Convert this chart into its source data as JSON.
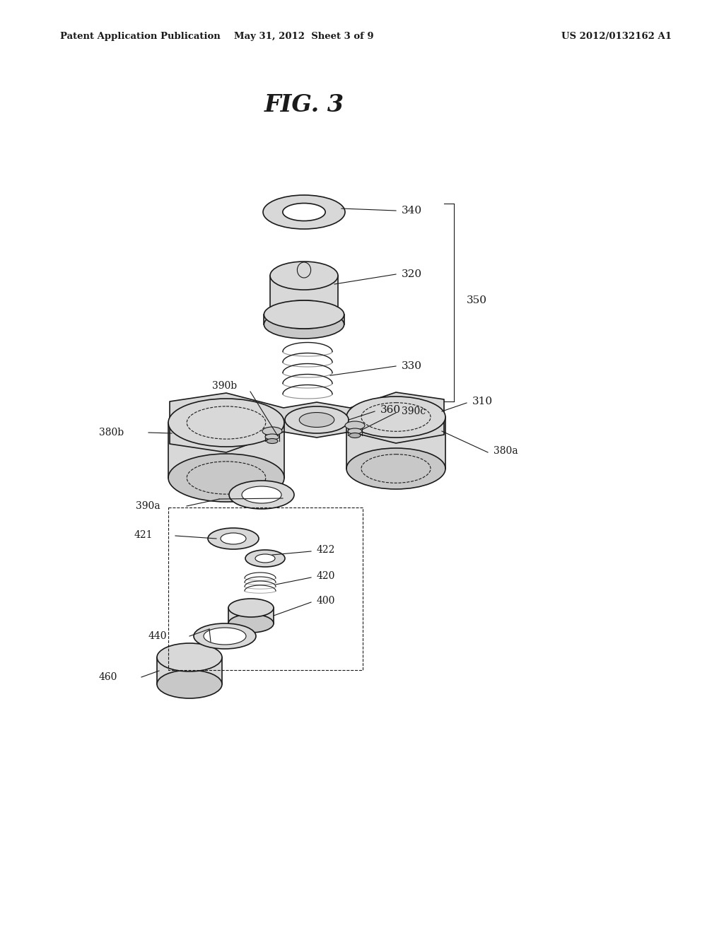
{
  "title": "FIG. 3",
  "header_left": "Patent Application Publication",
  "header_center": "May 31, 2012  Sheet 3 of 9",
  "header_right": "US 2012/0132162 A1",
  "bg_color": "#ffffff",
  "line_color": "#1a1a1a",
  "fig_width": 10.24,
  "fig_height": 13.2,
  "dpi": 100
}
